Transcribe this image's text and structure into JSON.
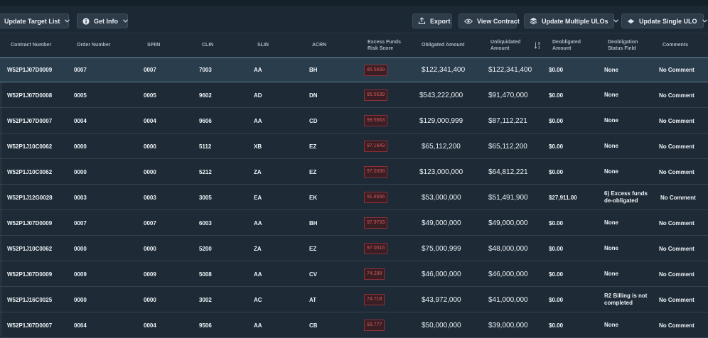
{
  "toolbar": {
    "update_target_list": "Update Target List",
    "get_info": "Get Info",
    "export": "Export",
    "view_contract": "View Contract",
    "update_multiple": "Update Multiple ULOs",
    "update_single": "Update Single ULO"
  },
  "columns": {
    "contract_number": "Contract Number",
    "order_number": "Order Number",
    "spiin": "SPIIN",
    "clin": "CLIN",
    "slin": "SLIN",
    "acrn": "ACRN",
    "risk_1": "Excess Funds",
    "risk_2": "Risk Score",
    "obligated": "Obligated Amount",
    "unliq_1": "Unliquidated",
    "unliq_2": "Amount",
    "deob_1": "Deobligated",
    "deob_2": "Amount",
    "status_1": "Deobligation",
    "status_2": "Status Field",
    "comments": "Comments"
  },
  "rows": [
    {
      "contract": "W52P1J07D0009",
      "order": "0007",
      "spiin": "0007",
      "clin": "7003",
      "slin": "AA",
      "acrn": "BH",
      "risk": "85.5699",
      "obligated": "$122,341,400",
      "unliquidated": "$122,341,400",
      "deobligated": "$0.00",
      "status": "None",
      "comments": "No Comment"
    },
    {
      "contract": "W52P1J07D0008",
      "order": "0005",
      "spiin": "0005",
      "clin": "9602",
      "slin": "AD",
      "acrn": "DN",
      "risk": "95.5539",
      "obligated": "$543,222,000",
      "unliquidated": "$91,470,000",
      "deobligated": "$0.00",
      "status": "None",
      "comments": "No Comment"
    },
    {
      "contract": "W52P1J07D0007",
      "order": "0004",
      "spiin": "0004",
      "clin": "9606",
      "slin": "AA",
      "acrn": "CD",
      "risk": "99.5563",
      "obligated": "$129,000,999",
      "unliquidated": "$87,112,221",
      "deobligated": "$0.00",
      "status": "None",
      "comments": "No Comment"
    },
    {
      "contract": "W52P1J10C0062",
      "order": "0000",
      "spiin": "0000",
      "clin": "5112",
      "slin": "XB",
      "acrn": "EZ",
      "risk": "97.1643",
      "obligated": "$65,112,200",
      "unliquidated": "$65,112,200",
      "deobligated": "$0.00",
      "status": "None",
      "comments": "No Comment"
    },
    {
      "contract": "W52P1J10C0062",
      "order": "0000",
      "spiin": "0000",
      "clin": "5212",
      "slin": "ZA",
      "acrn": "EZ",
      "risk": "97.0338",
      "obligated": "$123,000,000",
      "unliquidated": "$64,812,221",
      "deobligated": "$0.00",
      "status": "None",
      "comments": "No Comment"
    },
    {
      "contract": "W52P1J12G0028",
      "order": "0003",
      "spiin": "0003",
      "clin": "3005",
      "slin": "EA",
      "acrn": "EK",
      "risk": "91.6556",
      "obligated": "$53,000,000",
      "unliquidated": "$51,491,900",
      "deobligated": "$27,911.00",
      "status": "6) Excess funds de-obligated",
      "comments": "No Comment"
    },
    {
      "contract": "W52P1J07D0009",
      "order": "0007",
      "spiin": "0007",
      "clin": "6003",
      "slin": "AA",
      "acrn": "BH",
      "risk": "97.9733",
      "obligated": "$49,000,000",
      "unliquidated": "$49,000,000",
      "deobligated": "$0.00",
      "status": "None",
      "comments": "No Comment"
    },
    {
      "contract": "W52P1J10C0062",
      "order": "0000",
      "spiin": "0000",
      "clin": "5200",
      "slin": "ZA",
      "acrn": "EZ",
      "risk": "97.0516",
      "obligated": "$75,000,999",
      "unliquidated": "$48,000,000",
      "deobligated": "$0.00",
      "status": "None",
      "comments": "No Comment"
    },
    {
      "contract": "W52P1J07D0009",
      "order": "0009",
      "spiin": "0009",
      "clin": "5008",
      "slin": "AA",
      "acrn": "CV",
      "risk": "74.298",
      "obligated": "$46,000,000",
      "unliquidated": "$46,000,000",
      "deobligated": "$0.00",
      "status": "None",
      "comments": "No Comment"
    },
    {
      "contract": "W52P1J16C0025",
      "order": "0000",
      "spiin": "0000",
      "clin": "3002",
      "slin": "AC",
      "acrn": "AT",
      "risk": "74.718",
      "obligated": "$43,972,000",
      "unliquidated": "$41,000,000",
      "deobligated": "$0.00",
      "status": "R2 Billing is not completed",
      "comments": "No Comment"
    },
    {
      "contract": "W52P1J07D0007",
      "order": "0004",
      "spiin": "0004",
      "clin": "9506",
      "slin": "AA",
      "acrn": "CB",
      "risk": "93.777",
      "obligated": "$50,000,000",
      "unliquidated": "$39,000,000",
      "deobligated": "$0.00",
      "status": "None",
      "comments": "No Comment"
    }
  ],
  "colors": {
    "background": "#1e2a36",
    "selected_row": "#2a3d4d",
    "risk_text": "#d05a5a",
    "risk_border": "#8a3038"
  }
}
